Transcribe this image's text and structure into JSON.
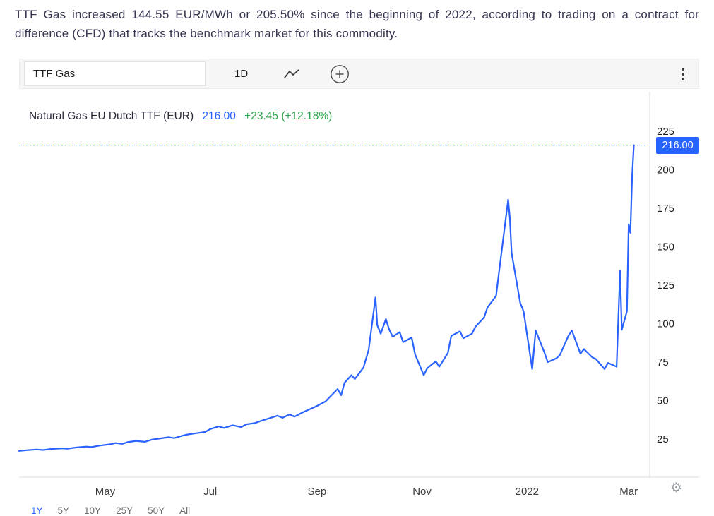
{
  "description": {
    "text": "TTF Gas increased 144.55 EUR/MWh or 205.50% since the beginning of 2022, according to trading on a contract for difference (CFD) that tracks the benchmark market for this commodity."
  },
  "toolbar": {
    "symbol_value": "TTF Gas",
    "interval_label": "1D",
    "style_icon": "line-style-icon",
    "add_icon": "compare-add-icon",
    "menu_icon": "more-menu-icon"
  },
  "chart_header": {
    "title": "Natural Gas EU Dutch TTF (EUR)",
    "price": "216.00",
    "change": "+23.45 (+12.18%)"
  },
  "price_badge": {
    "label": "216.00"
  },
  "range_buttons": [
    "1Y",
    "5Y",
    "10Y",
    "25Y",
    "50Y",
    "All"
  ],
  "colors": {
    "accent_blue": "#2962ff",
    "green": "#2da44e",
    "axis_text": "#1c1c1c",
    "x_label_text": "#3c3c3c",
    "grid_line": "#dcdcdc"
  },
  "chart_data": {
    "type": "line",
    "title": "Natural Gas EU Dutch TTF (EUR)",
    "unit": "EUR/MWh",
    "last_price": 216.0,
    "change_abs": 23.45,
    "change_pct": 12.18,
    "ylim": [
      0,
      250
    ],
    "y_ticks": [
      225,
      200,
      175,
      150,
      125,
      100,
      75,
      50,
      25
    ],
    "x_range": [
      "2021-03-12",
      "2022-03-12"
    ],
    "x_ticks": [
      {
        "label": "May",
        "date": "2021-05-01"
      },
      {
        "label": "Jul",
        "date": "2021-07-01"
      },
      {
        "label": "Sep",
        "date": "2021-09-01"
      },
      {
        "label": "Nov",
        "date": "2021-11-01"
      },
      {
        "label": "2022",
        "date": "2022-01-01"
      },
      {
        "label": "Mar",
        "date": "2022-03-01"
      }
    ],
    "series": [
      {
        "name": "Natural Gas EU Dutch TTF (EUR)",
        "points": [
          [
            "2021-03-12",
            17.3
          ],
          [
            "2021-03-17",
            17.8
          ],
          [
            "2021-03-22",
            18.2
          ],
          [
            "2021-03-26",
            17.9
          ],
          [
            "2021-03-31",
            18.6
          ],
          [
            "2021-04-06",
            19.0
          ],
          [
            "2021-04-09",
            18.7
          ],
          [
            "2021-04-14",
            19.5
          ],
          [
            "2021-04-20",
            20.1
          ],
          [
            "2021-04-23",
            19.8
          ],
          [
            "2021-04-28",
            20.8
          ],
          [
            "2021-05-04",
            21.6
          ],
          [
            "2021-05-07",
            22.4
          ],
          [
            "2021-05-11",
            21.9
          ],
          [
            "2021-05-14",
            23.0
          ],
          [
            "2021-05-19",
            23.8
          ],
          [
            "2021-05-24",
            23.2
          ],
          [
            "2021-05-28",
            24.6
          ],
          [
            "2021-06-02",
            25.4
          ],
          [
            "2021-06-07",
            26.2
          ],
          [
            "2021-06-10",
            25.6
          ],
          [
            "2021-06-15",
            27.2
          ],
          [
            "2021-06-18",
            28.0
          ],
          [
            "2021-06-23",
            28.8
          ],
          [
            "2021-06-28",
            29.6
          ],
          [
            "2021-07-01",
            31.5
          ],
          [
            "2021-07-06",
            33.2
          ],
          [
            "2021-07-09",
            32.2
          ],
          [
            "2021-07-14",
            34.0
          ],
          [
            "2021-07-19",
            32.8
          ],
          [
            "2021-07-22",
            34.6
          ],
          [
            "2021-07-27",
            35.4
          ],
          [
            "2021-07-30",
            36.6
          ],
          [
            "2021-08-04",
            38.4
          ],
          [
            "2021-08-09",
            40.2
          ],
          [
            "2021-08-12",
            38.8
          ],
          [
            "2021-08-16",
            41.0
          ],
          [
            "2021-08-19",
            39.6
          ],
          [
            "2021-08-24",
            42.5
          ],
          [
            "2021-08-27",
            44.0
          ],
          [
            "2021-09-01",
            46.5
          ],
          [
            "2021-09-06",
            49.5
          ],
          [
            "2021-09-09",
            53.0
          ],
          [
            "2021-09-13",
            57.5
          ],
          [
            "2021-09-15",
            53.5
          ],
          [
            "2021-09-17",
            61.5
          ],
          [
            "2021-09-21",
            66.5
          ],
          [
            "2021-09-23",
            64.0
          ],
          [
            "2021-09-28",
            71.5
          ],
          [
            "2021-10-01",
            83.0
          ],
          [
            "2021-10-05",
            117.0
          ],
          [
            "2021-10-06",
            99.0
          ],
          [
            "2021-10-08",
            93.5
          ],
          [
            "2021-10-11",
            103.0
          ],
          [
            "2021-10-13",
            96.0
          ],
          [
            "2021-10-15",
            91.5
          ],
          [
            "2021-10-19",
            94.5
          ],
          [
            "2021-10-21",
            88.0
          ],
          [
            "2021-10-26",
            91.0
          ],
          [
            "2021-10-28",
            80.0
          ],
          [
            "2021-11-02",
            66.5
          ],
          [
            "2021-11-04",
            71.0
          ],
          [
            "2021-11-09",
            75.5
          ],
          [
            "2021-11-11",
            72.0
          ],
          [
            "2021-11-16",
            81.0
          ],
          [
            "2021-11-18",
            92.0
          ],
          [
            "2021-11-23",
            95.0
          ],
          [
            "2021-11-25",
            90.5
          ],
          [
            "2021-11-30",
            93.5
          ],
          [
            "2021-12-02",
            98.0
          ],
          [
            "2021-12-07",
            104.0
          ],
          [
            "2021-12-09",
            110.5
          ],
          [
            "2021-12-14",
            118.0
          ],
          [
            "2021-12-16",
            136.0
          ],
          [
            "2021-12-21",
            180.5
          ],
          [
            "2021-12-22",
            169.0
          ],
          [
            "2021-12-23",
            146.0
          ],
          [
            "2021-12-28",
            113.5
          ],
          [
            "2021-12-30",
            108.0
          ],
          [
            "2022-01-04",
            70.5
          ],
          [
            "2022-01-06",
            95.5
          ],
          [
            "2022-01-11",
            81.5
          ],
          [
            "2022-01-13",
            75.0
          ],
          [
            "2022-01-18",
            77.5
          ],
          [
            "2022-01-20",
            79.5
          ],
          [
            "2022-01-25",
            92.0
          ],
          [
            "2022-01-27",
            95.5
          ],
          [
            "2022-02-01",
            80.5
          ],
          [
            "2022-02-03",
            83.5
          ],
          [
            "2022-02-08",
            78.0
          ],
          [
            "2022-02-10",
            77.0
          ],
          [
            "2022-02-15",
            70.5
          ],
          [
            "2022-02-17",
            74.5
          ],
          [
            "2022-02-22",
            72.0
          ],
          [
            "2022-02-24",
            134.5
          ],
          [
            "2022-02-25",
            96.0
          ],
          [
            "2022-02-28",
            108.0
          ],
          [
            "2022-03-01",
            164.5
          ],
          [
            "2022-03-02",
            159.0
          ],
          [
            "2022-03-03",
            196.0
          ],
          [
            "2022-03-04",
            216.0
          ]
        ]
      }
    ]
  }
}
